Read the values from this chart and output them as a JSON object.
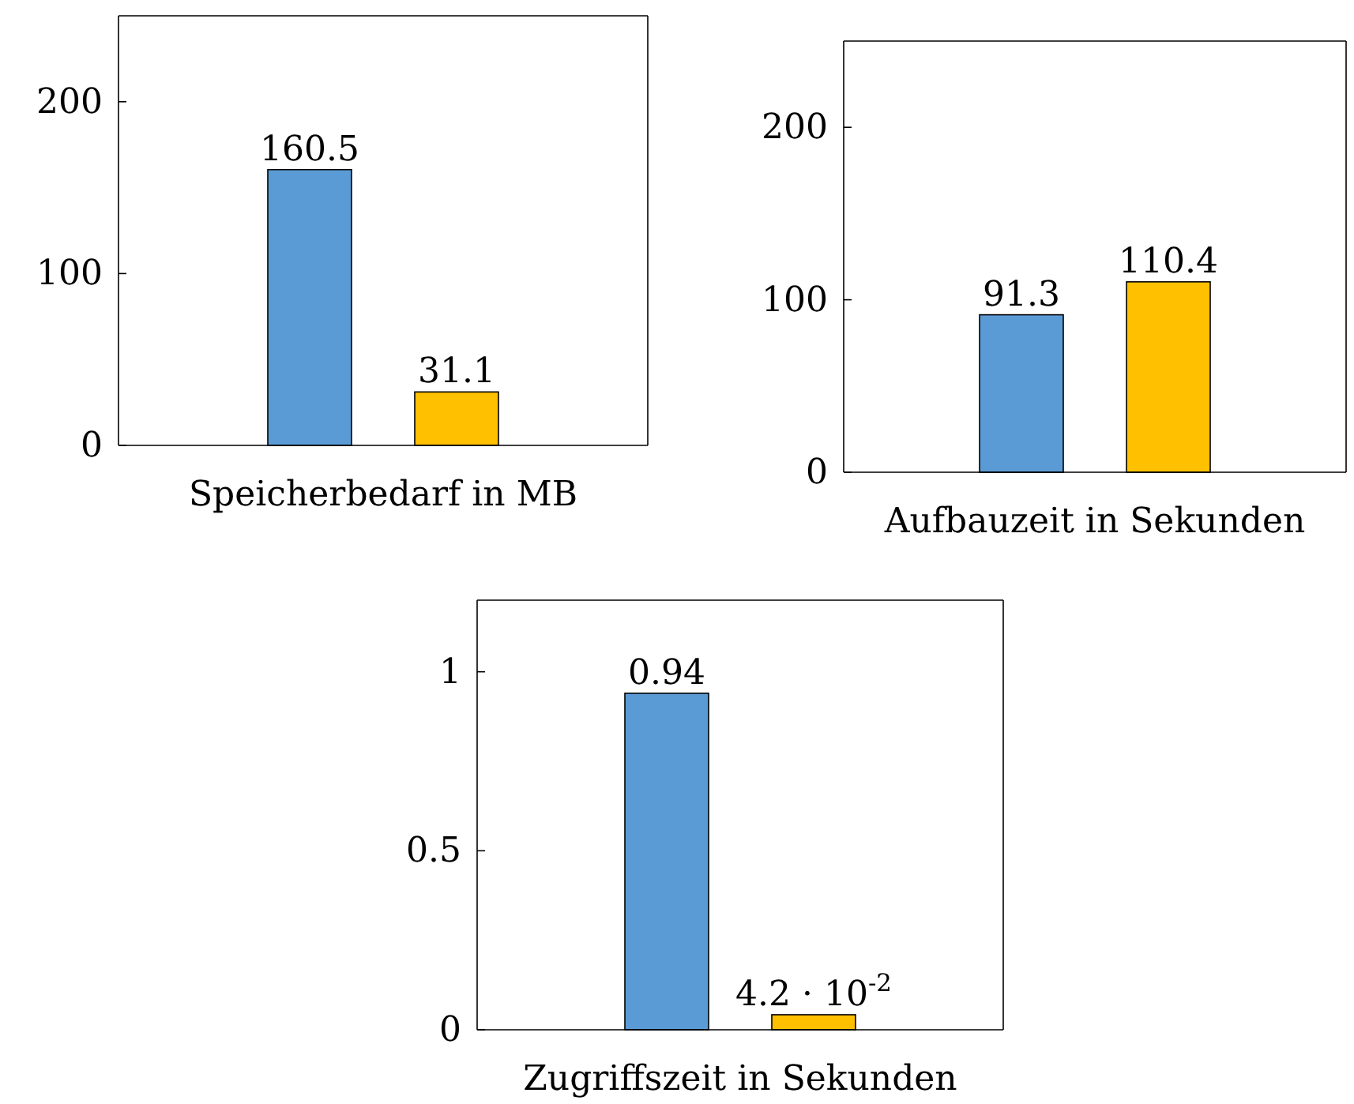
{
  "chart_data": [
    {
      "type": "bar",
      "xlabel": "Speicherbedarf in MB",
      "categories": [
        null
      ],
      "ylim": [
        0,
        250
      ],
      "yticks": [
        0,
        100,
        200
      ],
      "series": [
        {
          "color": "#5b9bd5",
          "values": [
            160.5
          ],
          "value_labels": [
            "160.5"
          ]
        },
        {
          "color": "#ffc000",
          "values": [
            31.1
          ],
          "value_labels": [
            "31.1"
          ]
        }
      ]
    },
    {
      "type": "bar",
      "xlabel": "Aufbauzeit in Sekunden",
      "categories": [
        null
      ],
      "ylim": [
        0,
        250
      ],
      "yticks": [
        0,
        100,
        200
      ],
      "series": [
        {
          "color": "#5b9bd5",
          "values": [
            91.3
          ],
          "value_labels": [
            "91.3"
          ]
        },
        {
          "color": "#ffc000",
          "values": [
            110.4
          ],
          "value_labels": [
            "110.4"
          ]
        }
      ]
    },
    {
      "type": "bar",
      "xlabel": "Zugriffszeit in Sekunden",
      "categories": [
        null
      ],
      "ylim": [
        0,
        1.2
      ],
      "yticks": [
        0,
        0.5,
        1
      ],
      "series": [
        {
          "color": "#5b9bd5",
          "values": [
            0.94
          ],
          "value_labels": [
            "0.94"
          ]
        },
        {
          "color": "#ffc000",
          "values": [
            0.042
          ],
          "value_labels": [
            "4.2 · 10$^{-2}$"
          ]
        }
      ]
    }
  ]
}
